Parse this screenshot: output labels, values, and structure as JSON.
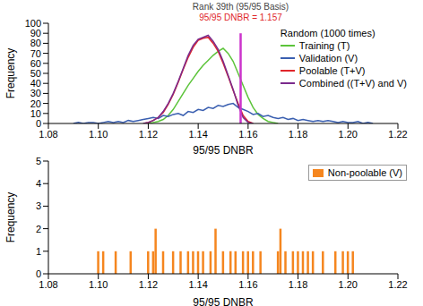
{
  "chart_data": [
    {
      "type": "line",
      "x_label": "95/95 DNBR",
      "y_label": "Frequency",
      "legend_title": "Random (1000 times)",
      "legend": "upper right",
      "grid": false,
      "xlim": [
        1.08,
        1.22
      ],
      "xticks": [
        1.08,
        {
          "value": 1.1,
          "label": "1.10"
        },
        1.12,
        1.14,
        1.16,
        1.18,
        {
          "value": 1.2,
          "label": "1.20"
        },
        1.22
      ],
      "ylim": [
        0,
        100
      ],
      "yticks": [
        0,
        10,
        20,
        30,
        40,
        50,
        60,
        70,
        80,
        90,
        100
      ],
      "x": [
        1.09,
        1.092,
        1.094,
        1.096,
        1.098,
        1.1,
        1.102,
        1.104,
        1.106,
        1.108,
        1.11,
        1.112,
        1.114,
        1.116,
        1.118,
        1.12,
        1.122,
        1.124,
        1.126,
        1.128,
        1.13,
        1.132,
        1.134,
        1.136,
        1.138,
        1.14,
        1.142,
        1.144,
        1.146,
        1.148,
        1.15,
        1.152,
        1.154,
        1.156,
        1.158,
        1.16,
        1.162,
        1.164,
        1.166,
        1.168,
        1.17,
        1.172,
        1.174,
        1.176,
        1.178,
        1.18,
        1.182,
        1.184,
        1.186,
        1.188,
        1.19,
        1.192,
        1.194,
        1.196,
        1.198,
        1.2,
        1.202,
        1.204,
        1.206,
        1.208,
        1.21
      ],
      "series": [
        {
          "name": "Training (T)",
          "color": "#5cc43a",
          "values": [
            null,
            null,
            null,
            null,
            null,
            null,
            null,
            null,
            null,
            null,
            null,
            null,
            null,
            null,
            null,
            0,
            1,
            2,
            4,
            8,
            14,
            22,
            30,
            38,
            45,
            52,
            58,
            63,
            68,
            72,
            75,
            70,
            62,
            50,
            38,
            26,
            16,
            9,
            5,
            2,
            1,
            0,
            null,
            null,
            null,
            null,
            null,
            null,
            null,
            null,
            null,
            null,
            null,
            null,
            null,
            null,
            null,
            null,
            null,
            null,
            null
          ]
        },
        {
          "name": "Validation (V)",
          "color": "#3a5fb0",
          "values": [
            0,
            1,
            0,
            1,
            1,
            0,
            1,
            2,
            1,
            2,
            1,
            3,
            2,
            3,
            4,
            5,
            6,
            5,
            8,
            7,
            9,
            10,
            8,
            12,
            11,
            14,
            13,
            16,
            15,
            18,
            17,
            19,
            20,
            16,
            14,
            12,
            9,
            10,
            7,
            8,
            6,
            5,
            6,
            4,
            5,
            3,
            4,
            3,
            2,
            3,
            2,
            3,
            2,
            1,
            2,
            1,
            1,
            2,
            0,
            1,
            0
          ]
        },
        {
          "name": "Poolable (T+V)",
          "color": "#e0262b",
          "values": [
            null,
            null,
            null,
            null,
            null,
            null,
            null,
            null,
            null,
            null,
            null,
            null,
            null,
            null,
            0,
            1,
            3,
            6,
            11,
            19,
            29,
            41,
            54,
            66,
            76,
            83,
            85,
            86,
            80,
            72,
            60,
            47,
            33,
            20,
            8,
            2,
            0,
            null,
            null,
            null,
            null,
            null,
            null,
            null,
            null,
            null,
            null,
            null,
            null,
            null,
            null,
            null,
            null,
            null,
            null,
            null,
            null,
            null,
            null,
            null,
            null
          ]
        },
        {
          "name": "Combined ((T+V) and V)",
          "color": "#7b2a8c",
          "values": [
            null,
            null,
            null,
            null,
            null,
            null,
            null,
            null,
            null,
            null,
            null,
            null,
            null,
            null,
            0,
            1,
            3,
            6,
            12,
            20,
            30,
            42,
            55,
            68,
            78,
            84,
            86,
            88,
            82,
            74,
            62,
            48,
            34,
            18,
            6,
            1,
            0,
            null,
            null,
            null,
            null,
            null,
            null,
            null,
            null,
            null,
            null,
            null,
            null,
            null,
            null,
            null,
            null,
            null,
            null,
            null,
            null,
            null,
            null,
            null,
            null
          ]
        }
      ],
      "reference_line": {
        "x": 1.157,
        "y": [
          0,
          90
        ],
        "color": "#cc33cc"
      },
      "annotations": [
        {
          "x": 1.157,
          "text": "Rank 39th (95/95 Basis)",
          "color": "#444444"
        },
        {
          "x": 1.157,
          "text": "95/95 DNBR = 1.157",
          "color": "#e0262b"
        }
      ]
    },
    {
      "type": "bar",
      "x_label": "95/95 DNBR",
      "y_label": "Frequency",
      "legend": "upper right",
      "grid": false,
      "xlim": [
        1.08,
        1.22
      ],
      "xticks": [
        1.08,
        {
          "value": 1.1,
          "label": "1.10"
        },
        1.12,
        1.14,
        1.16,
        1.18,
        {
          "value": 1.2,
          "label": "1.20"
        },
        1.22
      ],
      "ylim": [
        0,
        5
      ],
      "yticks": [
        0,
        1,
        2,
        3,
        4,
        5
      ],
      "x": [
        1.1,
        1.102,
        1.107,
        1.113,
        1.12,
        1.122,
        1.123,
        1.126,
        1.13,
        1.133,
        1.136,
        1.138,
        1.14,
        1.142,
        1.145,
        1.147,
        1.15,
        1.153,
        1.155,
        1.158,
        1.16,
        1.162,
        1.165,
        1.172,
        1.173,
        1.175,
        1.178,
        1.18,
        1.182,
        1.184,
        1.186,
        1.19,
        1.195,
        1.198,
        1.2,
        1.202
      ],
      "series": [
        {
          "name": "Non-poolable (V)",
          "color": "#f5861f",
          "values": [
            1,
            1,
            1,
            1,
            1,
            1,
            2,
            1,
            1,
            1,
            1,
            1,
            1,
            1,
            1,
            2,
            1,
            1,
            1,
            1,
            1,
            1,
            1,
            1,
            2,
            1,
            1,
            1,
            1,
            1,
            1,
            1,
            1,
            1,
            1,
            1
          ]
        }
      ]
    }
  ]
}
